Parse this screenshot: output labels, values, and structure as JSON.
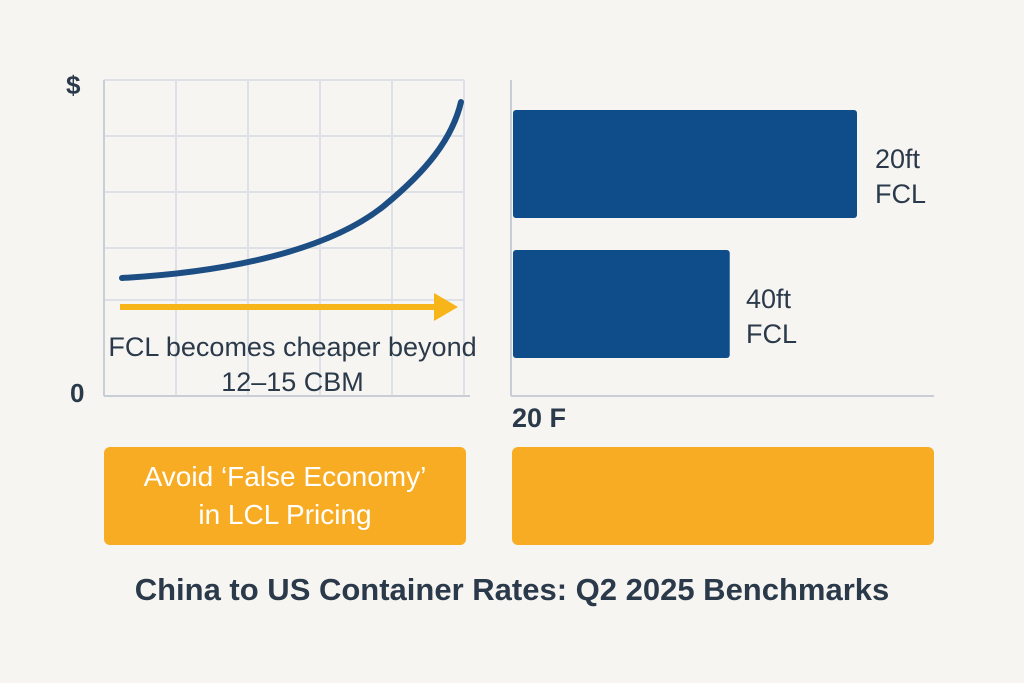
{
  "chart_data": [
    {
      "type": "line",
      "y_axis_top_label": "$",
      "y_axis_bottom_label": "0",
      "grid": true,
      "annotation": "FCL becomes cheaper beyond 12–15 CBM",
      "series_color": "#1c4e84",
      "arrow_color": "#f8b519"
    },
    {
      "type": "bar",
      "orientation": "horizontal",
      "categories": [
        "20ft FCL",
        "40ft FCL"
      ],
      "category_lines": [
        [
          "20ft",
          "FCL"
        ],
        [
          "40ft",
          "FCL"
        ]
      ],
      "values": [
        100,
        63
      ],
      "axis_tick_label": "20 F",
      "bar_color": "#0f4c8a"
    }
  ],
  "callouts": {
    "left_lines": [
      "Avoid ‘False Economy’",
      "in LCL Pricing"
    ],
    "right_text": ""
  },
  "title": "China to US Container Rates: Q2 2025 Benchmarks",
  "colors": {
    "accent": "#f8ac23",
    "navy": "#0f4c8a",
    "text": "#2b3a4a",
    "background": "#f7f5f2"
  }
}
